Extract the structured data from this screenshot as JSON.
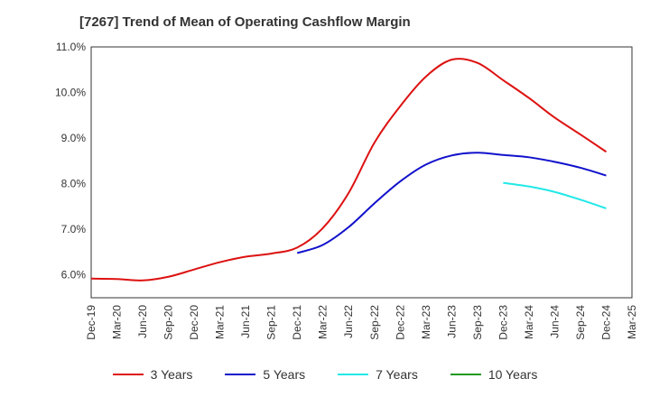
{
  "chart_data": {
    "type": "line",
    "title": "[7267]  Trend of Mean of Operating Cashflow Margin",
    "xlabel": "",
    "ylabel": "",
    "ylim": [
      5.5,
      11.0
    ],
    "y_ticks": [
      6.0,
      7.0,
      8.0,
      9.0,
      10.0,
      11.0
    ],
    "y_tick_labels": [
      "6.0%",
      "7.0%",
      "8.0%",
      "9.0%",
      "10.0%",
      "11.0%"
    ],
    "x_tick_labels": [
      "Dec-19",
      "Mar-20",
      "Jun-20",
      "Sep-20",
      "Dec-20",
      "Mar-21",
      "Jun-21",
      "Sep-21",
      "Dec-21",
      "Mar-22",
      "Jun-22",
      "Sep-22",
      "Dec-22",
      "Mar-23",
      "Jun-23",
      "Sep-23",
      "Dec-23",
      "Mar-24",
      "Jun-24",
      "Sep-24",
      "Dec-24",
      "Mar-25"
    ],
    "grid": true,
    "legend_position": "bottom",
    "series": [
      {
        "name": "3 Years",
        "color": "#dd1111",
        "x": [
          "Dec-19",
          "Mar-20",
          "Jun-20",
          "Sep-20",
          "Dec-20",
          "Mar-21",
          "Jun-21",
          "Sep-21",
          "Dec-21",
          "Mar-22",
          "Jun-22",
          "Sep-22",
          "Dec-22",
          "Mar-23",
          "Jun-23",
          "Sep-23",
          "Dec-23",
          "Mar-24",
          "Jun-24",
          "Sep-24",
          "Dec-24"
        ],
        "values": [
          5.92,
          5.91,
          5.88,
          5.96,
          6.12,
          6.28,
          6.4,
          6.47,
          6.6,
          7.03,
          7.8,
          8.9,
          9.7,
          10.35,
          10.72,
          10.65,
          10.27,
          9.88,
          9.45,
          9.08,
          8.7
        ]
      },
      {
        "name": "5 Years",
        "color": "#1111cc",
        "x": [
          "Dec-21",
          "Mar-22",
          "Jun-22",
          "Sep-22",
          "Dec-22",
          "Mar-23",
          "Jun-23",
          "Sep-23",
          "Dec-23",
          "Mar-24",
          "Jun-24",
          "Sep-24",
          "Dec-24"
        ],
        "values": [
          6.48,
          6.66,
          7.05,
          7.57,
          8.05,
          8.42,
          8.62,
          8.68,
          8.63,
          8.58,
          8.48,
          8.35,
          8.18
        ]
      },
      {
        "name": "7 Years",
        "color": "#22e8e8",
        "x": [
          "Dec-23",
          "Mar-24",
          "Jun-24",
          "Sep-24",
          "Dec-24"
        ],
        "values": [
          8.02,
          7.94,
          7.82,
          7.65,
          7.46
        ]
      },
      {
        "name": "10 Years",
        "color": "#229922",
        "x": [],
        "values": []
      }
    ]
  }
}
